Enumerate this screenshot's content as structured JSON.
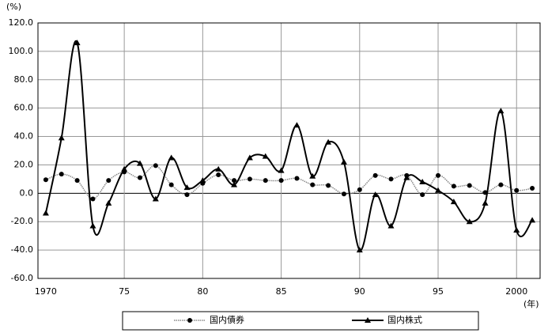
{
  "chart_data": {
    "type": "line",
    "y_unit": "(%)",
    "x_unit": "(年)",
    "x": [
      1970,
      1971,
      1972,
      1973,
      1974,
      1975,
      1976,
      1977,
      1978,
      1979,
      1980,
      1981,
      1982,
      1983,
      1984,
      1985,
      1986,
      1987,
      1988,
      1989,
      1990,
      1991,
      1992,
      1993,
      1994,
      1995,
      1996,
      1997,
      1998,
      1999,
      2000,
      2001
    ],
    "series": [
      {
        "name": "国内債券",
        "color": "#888888",
        "marker": "circle",
        "values": [
          9.5,
          13.5,
          9,
          -4,
          9,
          15,
          11,
          19.5,
          6,
          -1,
          7,
          13,
          9,
          10,
          9,
          9,
          10.5,
          6,
          5.5,
          -0.5,
          2.5,
          12.5,
          10,
          12.5,
          -1,
          12.5,
          5,
          5.5,
          0.5,
          6,
          2,
          3.5
        ]
      },
      {
        "name": "国内株式",
        "color": "#000000",
        "marker": "triangle",
        "values": [
          -14,
          39,
          106,
          -23,
          -7,
          17,
          21,
          -4,
          25,
          4,
          9,
          17,
          6,
          25,
          26,
          16,
          48,
          12,
          36,
          22,
          -40,
          -1,
          -23,
          11,
          8,
          2,
          -6,
          -20,
          -7,
          58,
          -26,
          -19
        ]
      }
    ],
    "xlim": [
      1969.5,
      2001.5
    ],
    "xticks": [
      1970,
      {
        "value": 1975,
        "label": "75"
      },
      {
        "value": 1980,
        "label": "80"
      },
      {
        "value": 1985,
        "label": "85"
      },
      {
        "value": 1990,
        "label": "90"
      },
      {
        "value": 1995,
        "label": "95"
      },
      2000
    ],
    "ylim": [
      -60,
      120
    ],
    "yticks": [
      {
        "value": -60,
        "label": "-60.0"
      },
      {
        "value": -40,
        "label": "-40.0"
      },
      {
        "value": -20,
        "label": "-20.0"
      },
      {
        "value": 0,
        "label": "0.0"
      },
      {
        "value": 20,
        "label": "20.0"
      },
      {
        "value": 40,
        "label": "40.0"
      },
      {
        "value": 60,
        "label": "60.0"
      },
      {
        "value": 80,
        "label": "80.0"
      },
      {
        "value": 100,
        "label": "100.0"
      },
      {
        "value": 120,
        "label": "120.0"
      }
    ],
    "grid": true
  }
}
